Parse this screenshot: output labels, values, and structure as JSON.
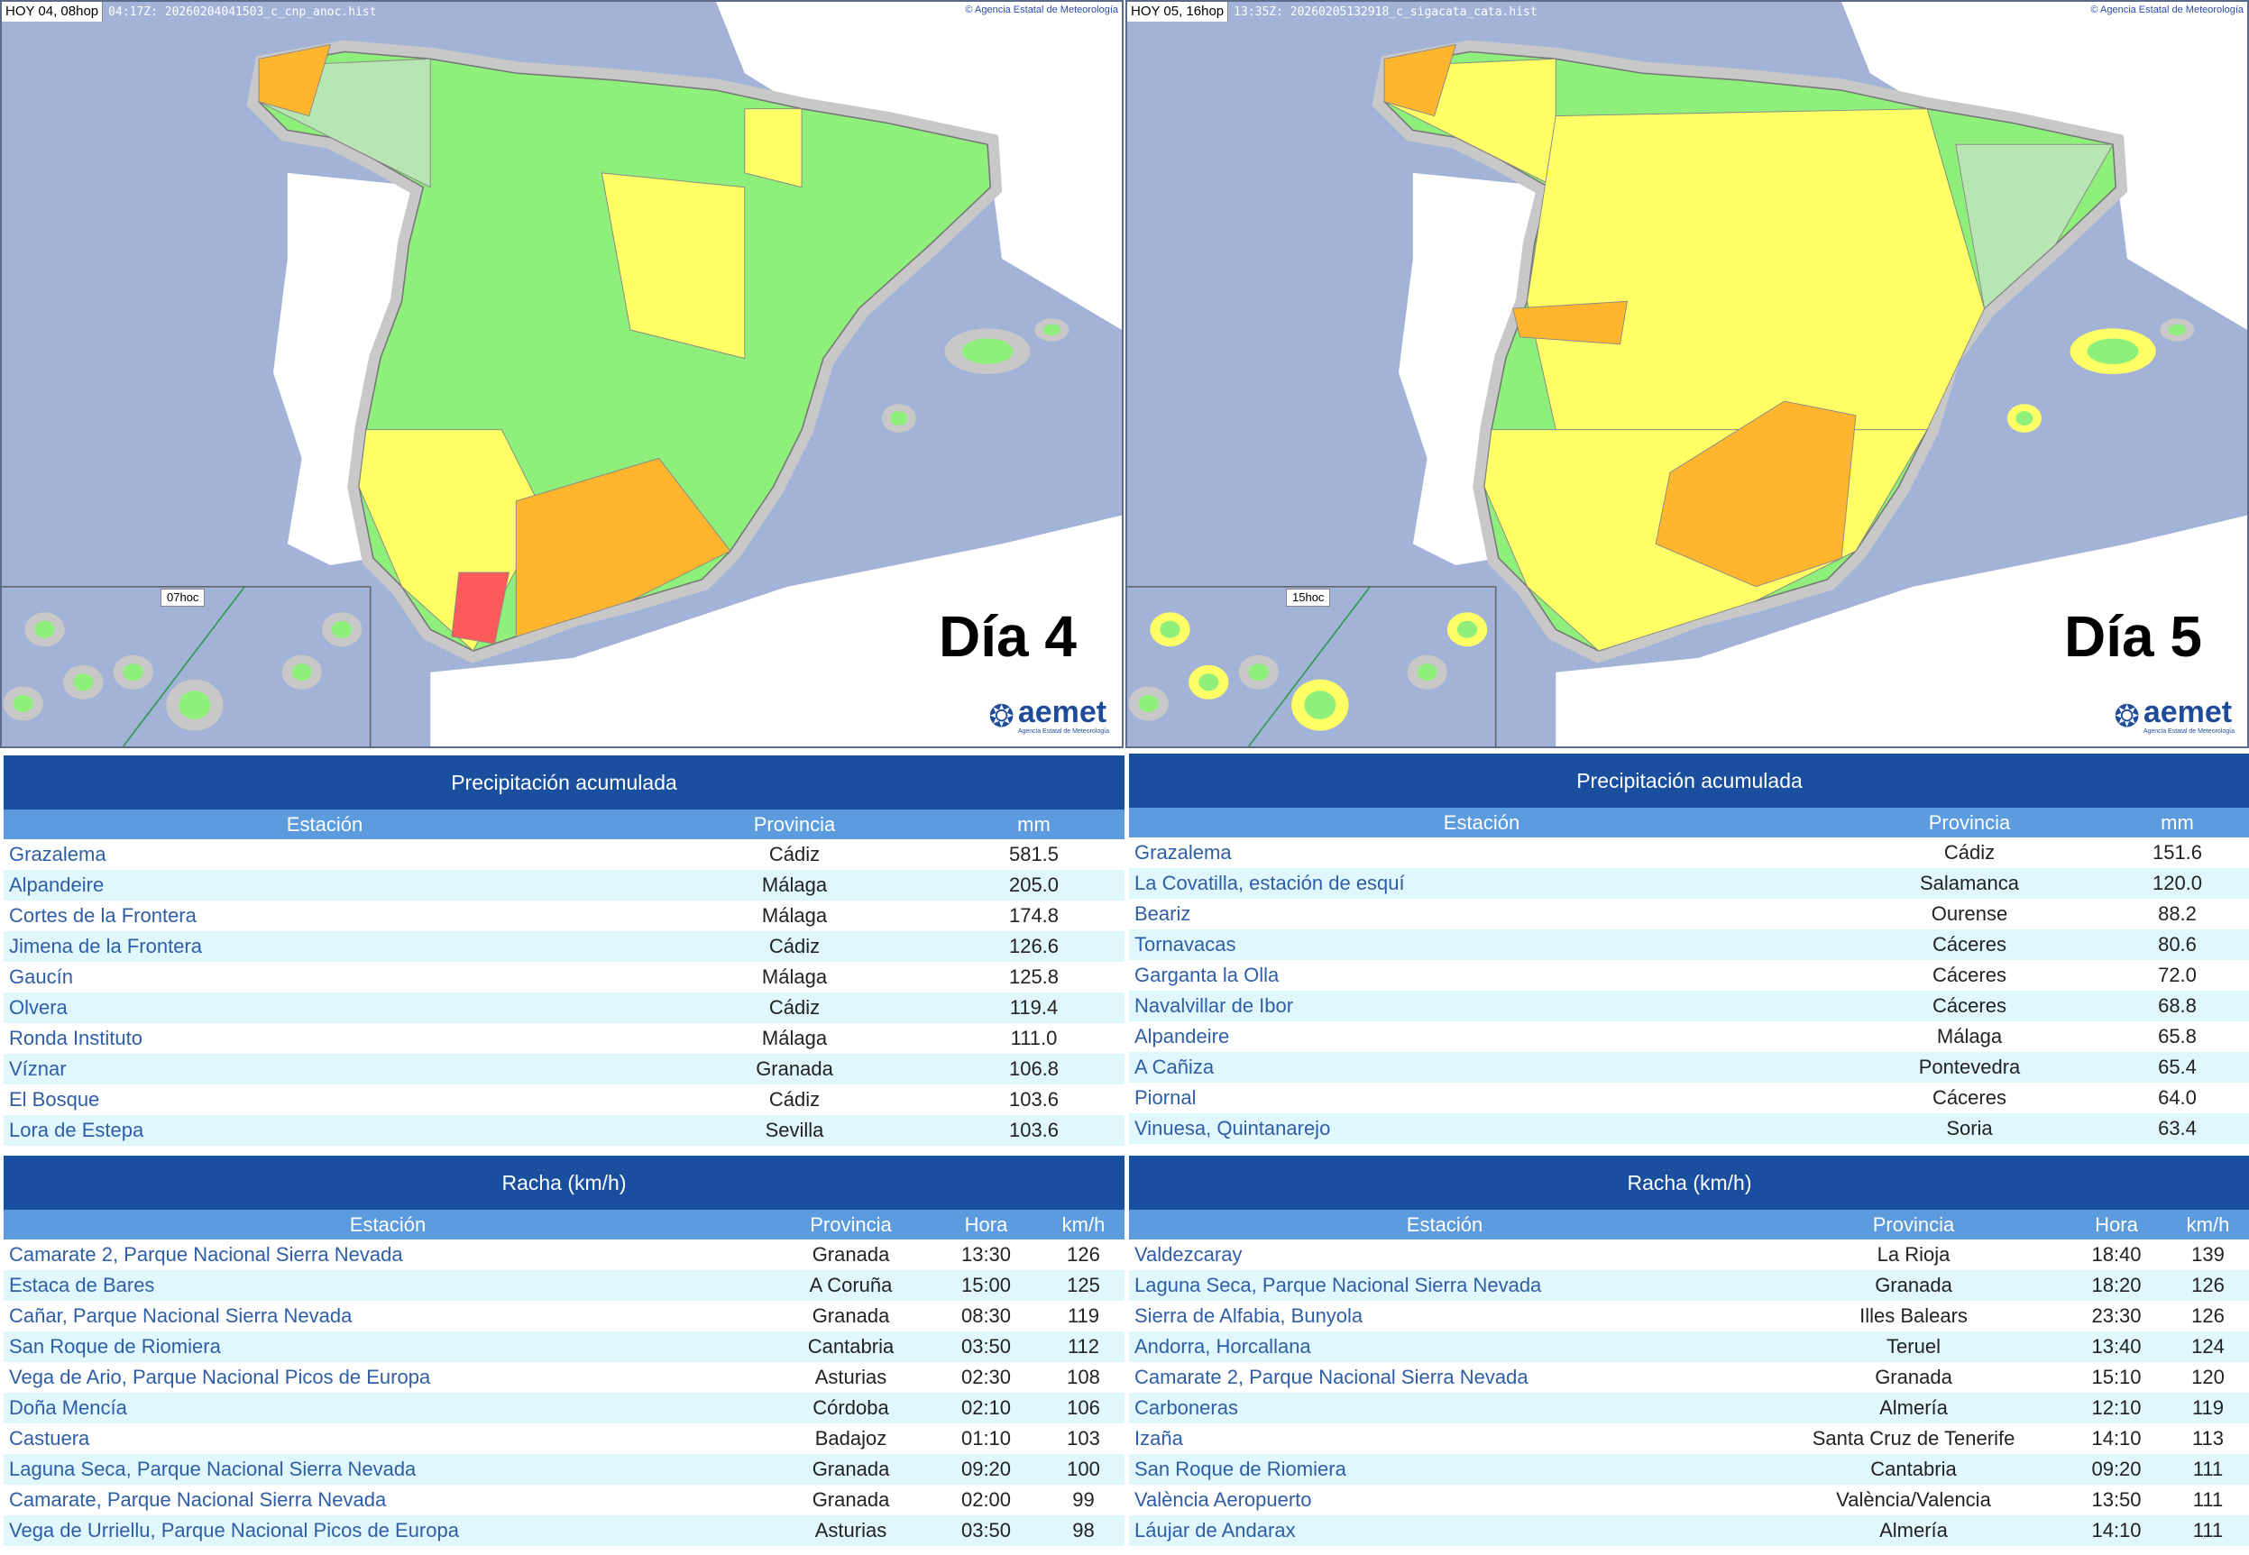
{
  "maps": [
    {
      "day_label": "HOY 04, 08hop",
      "file": "04:17Z: 20260204041503_c_cnp_anoc.hist",
      "copyright": "Agencia Estatal de Meteorología",
      "canarias_label": "07hoc",
      "title": "Día 4",
      "logo": "aemet",
      "logo_sub": "Agencia Estatal de Meteorología"
    },
    {
      "day_label": "HOY 05, 16hop",
      "file": "13:35Z: 20260205132918_c_sigacata_cata.hist",
      "copyright": "Agencia Estatal de Meteorología",
      "canarias_label": "15hoc",
      "title": "Día 5",
      "logo": "aemet",
      "logo_sub": "Agencia Estatal de Meteorología"
    }
  ],
  "colors": {
    "sea": "#a3b3d8",
    "green": "#8ef07a",
    "light_green": "#b8e6b2",
    "yellow": "#ffff66",
    "orange": "#ffb52e",
    "red": "#ff5a5a",
    "header": "#1a4fa0",
    "subheader": "#5b9bde"
  },
  "precip": [
    {
      "title": "Precipitación acumulada",
      "cols": [
        "Estación",
        "Provincia",
        "mm"
      ],
      "rows": [
        [
          "Grazalema",
          "Cádiz",
          "581.5"
        ],
        [
          "Alpandeire",
          "Málaga",
          "205.0"
        ],
        [
          "Cortes de la Frontera",
          "Málaga",
          "174.8"
        ],
        [
          "Jimena de la Frontera",
          "Cádiz",
          "126.6"
        ],
        [
          "Gaucín",
          "Málaga",
          "125.8"
        ],
        [
          "Olvera",
          "Cádiz",
          "119.4"
        ],
        [
          "Ronda Instituto",
          "Málaga",
          "111.0"
        ],
        [
          "Víznar",
          "Granada",
          "106.8"
        ],
        [
          "El Bosque",
          "Cádiz",
          "103.6"
        ],
        [
          "Lora de Estepa",
          "Sevilla",
          "103.6"
        ]
      ]
    },
    {
      "title": "Precipitación acumulada",
      "cols": [
        "Estación",
        "Provincia",
        "mm"
      ],
      "rows": [
        [
          "Grazalema",
          "Cádiz",
          "151.6"
        ],
        [
          "La Covatilla, estación de esquí",
          "Salamanca",
          "120.0"
        ],
        [
          "Beariz",
          "Ourense",
          "88.2"
        ],
        [
          "Tornavacas",
          "Cáceres",
          "80.6"
        ],
        [
          "Garganta la Olla",
          "Cáceres",
          "72.0"
        ],
        [
          "Navalvillar de Ibor",
          "Cáceres",
          "68.8"
        ],
        [
          "Alpandeire",
          "Málaga",
          "65.8"
        ],
        [
          "A Cañiza",
          "Pontevedra",
          "65.4"
        ],
        [
          "Piornal",
          "Cáceres",
          "64.0"
        ],
        [
          "Vinuesa, Quintanarejo",
          "Soria",
          "63.4"
        ]
      ]
    }
  ],
  "racha": [
    {
      "title": "Racha (km/h)",
      "cols": [
        "Estación",
        "Provincia",
        "Hora",
        "km/h"
      ],
      "rows": [
        [
          "Camarate 2, Parque Nacional Sierra Nevada",
          "Granada",
          "13:30",
          "126"
        ],
        [
          "Estaca de Bares",
          "A Coruña",
          "15:00",
          "125"
        ],
        [
          "Cañar, Parque Nacional Sierra Nevada",
          "Granada",
          "08:30",
          "119"
        ],
        [
          "San Roque de Riomiera",
          "Cantabria",
          "03:50",
          "112"
        ],
        [
          "Vega de Ario, Parque Nacional Picos de Europa",
          "Asturias",
          "02:30",
          "108"
        ],
        [
          "Doña Mencía",
          "Córdoba",
          "02:10",
          "106"
        ],
        [
          "Castuera",
          "Badajoz",
          "01:10",
          "103"
        ],
        [
          "Laguna Seca, Parque Nacional Sierra Nevada",
          "Granada",
          "09:20",
          "100"
        ],
        [
          "Camarate, Parque Nacional Sierra Nevada",
          "Granada",
          "02:00",
          "99"
        ],
        [
          "Vega de Urriellu, Parque Nacional Picos de Europa",
          "Asturias",
          "03:50",
          "98"
        ]
      ]
    },
    {
      "title": "Racha (km/h)",
      "cols": [
        "Estación",
        "Provincia",
        "Hora",
        "km/h"
      ],
      "rows": [
        [
          "Valdezcaray",
          "La Rioja",
          "18:40",
          "139"
        ],
        [
          "Laguna Seca, Parque Nacional Sierra Nevada",
          "Granada",
          "18:20",
          "126"
        ],
        [
          "Sierra de Alfabia, Bunyola",
          "Illes Balears",
          "23:30",
          "126"
        ],
        [
          "Andorra, Horcallana",
          "Teruel",
          "13:40",
          "124"
        ],
        [
          "Camarate 2, Parque Nacional Sierra Nevada",
          "Granada",
          "15:10",
          "120"
        ],
        [
          "Carboneras",
          "Almería",
          "12:10",
          "119"
        ],
        [
          "Izaña",
          "Santa Cruz de Tenerife",
          "14:10",
          "113"
        ],
        [
          "San Roque de Riomiera",
          "Cantabria",
          "09:20",
          "111"
        ],
        [
          "València Aeropuerto",
          "València/Valencia",
          "13:50",
          "111"
        ],
        [
          "Láujar de Andarax",
          "Almería",
          "14:10",
          "111"
        ]
      ]
    }
  ]
}
